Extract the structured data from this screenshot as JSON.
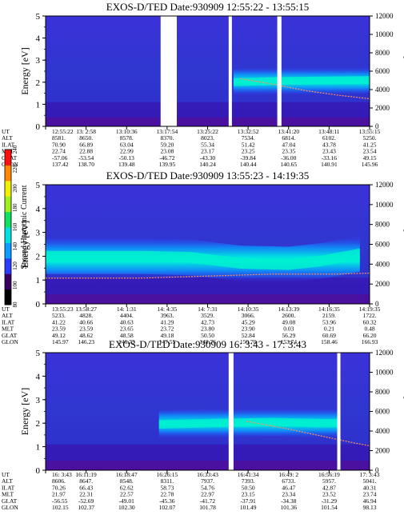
{
  "chart_data": [
    {
      "type": "heatmap",
      "title": "EXOS-D/TED   Date:930909   12:55:22 - 13:55:15",
      "ylabel": "Energy [eV]",
      "y2label": "Temperature [K]",
      "ylim": [
        0,
        5
      ],
      "y2lim": [
        0,
        12000
      ],
      "yticks": [
        "0",
        "1",
        "2",
        "3",
        "4",
        "5"
      ],
      "y2ticks": [
        "0",
        "2000",
        "4000",
        "6000",
        "8000",
        "10000",
        "12000"
      ],
      "row_labels": [
        "UT",
        "ALT",
        "ILAT",
        "MLT",
        "GLAT",
        "GLON"
      ],
      "columns": [
        [
          "12:55:22",
          "8581.",
          "70.90",
          "22.74",
          "-57.06",
          "137.42"
        ],
        [
          "13: 2:58",
          "8650.",
          "66.89",
          "22.88",
          "-53.54",
          "138.70"
        ],
        [
          "13:10:36",
          "8578.",
          "63.04",
          "22.99",
          "-50.13",
          "139.48"
        ],
        [
          "13:17:54",
          "8370.",
          "59.20",
          "23.08",
          "-46.72",
          "139.95"
        ],
        [
          "13:25:22",
          "8023.",
          "55.34",
          "23.17",
          "-43.30",
          "140.24"
        ],
        [
          "13:32:52",
          "7534.",
          "51.42",
          "23.25",
          "-39.84",
          "140.44"
        ],
        [
          "13:41:20",
          "6814.",
          "47.04",
          "23.35",
          "-36.00",
          "140.65"
        ],
        [
          "13:48:11",
          "6102.",
          "43.78",
          "23.43",
          "-33.16",
          "140.91"
        ],
        [
          "13:55:15",
          "5250.",
          "41.25",
          "23.54",
          "49.15",
          "145.96"
        ]
      ],
      "gaps": [
        [
          0.355,
          0.405
        ],
        [
          0.565,
          0.575
        ],
        [
          0.715,
          0.728
        ]
      ],
      "band_energy": [
        [
          0.58,
          2.0
        ],
        [
          0.7,
          2.05
        ],
        [
          1.0,
          2.1
        ]
      ],
      "temperature_trace": [
        [
          0.6,
          5200
        ],
        [
          0.7,
          4600
        ],
        [
          0.8,
          3900
        ],
        [
          0.9,
          3400
        ],
        [
          1.0,
          3000
        ]
      ]
    },
    {
      "type": "heatmap",
      "title": "EXOS-D/TED   Date:930909   13:55:23 - 14:19:35",
      "ylabel": "Energy [eV]",
      "y2label": "Temperature [K]",
      "ylim": [
        0,
        5
      ],
      "y2lim": [
        0,
        12000
      ],
      "yticks": [
        "0",
        "1",
        "2",
        "3",
        "4",
        "5"
      ],
      "y2ticks": [
        "0",
        "2000",
        "4000",
        "6000",
        "8000",
        "10000",
        "12000"
      ],
      "row_labels": [
        "UT",
        "ALT",
        "ILAT",
        "MLT",
        "GLAT",
        "GLON"
      ],
      "columns": [
        [
          "13:55:23",
          "5233.",
          "41.22",
          "23.59",
          "49.12",
          "145.97"
        ],
        [
          "13:58:27",
          "4828.",
          "40.66",
          "23.59",
          "48.62",
          "146.23"
        ],
        [
          "14: 1:31",
          "4404.",
          "40.63",
          "23.65",
          "48.58",
          "146.73"
        ],
        [
          "14: 4:35",
          "3963.",
          "41.29",
          "23.72",
          "49.18",
          "147.55"
        ],
        [
          "14: 7:31",
          "3529.",
          "42.73",
          "23.80",
          "50.50",
          "148.76"
        ],
        [
          "14:10:35",
          "3066.",
          "45.29",
          "23.90",
          "52.84",
          "150.70"
        ],
        [
          "14:13:39",
          "2600.",
          "49.08",
          "0.03",
          "56.29",
          "153.74"
        ],
        [
          "14:16:35",
          "2159.",
          "53.96",
          "0.21",
          "60.69",
          "158.46"
        ],
        [
          "14:19:35",
          "1722.",
          "60.32",
          "0.48",
          "66.20",
          "166.93"
        ]
      ],
      "band_energy": [
        [
          0.0,
          2.0
        ],
        [
          0.3,
          2.0
        ],
        [
          0.45,
          1.95
        ],
        [
          0.6,
          1.7
        ],
        [
          0.75,
          1.65
        ],
        [
          0.85,
          1.8
        ],
        [
          0.97,
          2.1
        ]
      ],
      "temperature_trace": [
        [
          0.0,
          2600
        ],
        [
          0.3,
          2600
        ],
        [
          0.5,
          2800
        ],
        [
          0.7,
          3000
        ],
        [
          0.9,
          3000
        ],
        [
          1.0,
          3100
        ]
      ]
    },
    {
      "type": "heatmap",
      "title": "EXOS-D/TED   Date:930909   16: 3:43 - 17: 3:43",
      "ylabel": "Energy [eV]",
      "y2label": "Temperature [K]",
      "ylim": [
        0,
        5
      ],
      "y2lim": [
        0,
        12000
      ],
      "yticks": [
        "0",
        "1",
        "2",
        "3",
        "4",
        "5"
      ],
      "y2ticks": [
        "0",
        "2000",
        "4000",
        "6000",
        "8000",
        "10000",
        "12000"
      ],
      "row_labels": [
        "UT",
        "ALT",
        "ILAT",
        "MLT",
        "GLAT",
        "GLON"
      ],
      "columns": [
        [
          "16: 3:43",
          "8606.",
          "70.26",
          "21.97",
          "-56.55",
          "102.15"
        ],
        [
          "16:11:19",
          "8647.",
          "66.43",
          "22.31",
          "-52.69",
          "102.37"
        ],
        [
          "16:18:47",
          "8548.",
          "62.62",
          "22.57",
          "-49.01",
          "102.30"
        ],
        [
          "16:26:15",
          "8311.",
          "58.73",
          "22.78",
          "-45.36",
          "102.07"
        ],
        [
          "16:33:43",
          "7937.",
          "54.76",
          "22.97",
          "-41.72",
          "101.78"
        ],
        [
          "16:41:34",
          "7393.",
          "50.50",
          "23.15",
          "-37.91",
          "101.49"
        ],
        [
          "16:49: 2",
          "6733.",
          "46.47",
          "23.34",
          "-34.38",
          "101.36"
        ],
        [
          "16:56:19",
          "5957.",
          "42.87",
          "23.52",
          "-31.29",
          "101.54"
        ],
        [
          "17: 3:43",
          "5041.",
          "40.31",
          "23.74",
          "46.94",
          "98.13"
        ]
      ],
      "gaps": [
        [
          0.565,
          0.58
        ],
        [
          0.9,
          0.91
        ]
      ],
      "band_energy": [
        [
          0.35,
          1.95
        ],
        [
          0.5,
          2.0
        ],
        [
          0.7,
          2.05
        ],
        [
          0.85,
          2.0
        ],
        [
          0.9,
          2.0
        ]
      ],
      "temperature_trace": [
        [
          0.62,
          5000
        ],
        [
          0.75,
          4200
        ],
        [
          0.85,
          3500
        ],
        [
          0.95,
          2800
        ],
        [
          1.0,
          2500
        ]
      ]
    }
  ],
  "colorbar": {
    "label": "Second Harmonic Current",
    "ticks": [
      "240",
      "220",
      "200",
      "180",
      "160",
      "140",
      "120",
      "100",
      "80"
    ],
    "colors": [
      "#000000",
      "#3a0060",
      "#2a3cff",
      "#0a9cff",
      "#00e0e0",
      "#10e060",
      "#a0f020",
      "#f0f000",
      "#ff8800",
      "#ff1010"
    ]
  }
}
